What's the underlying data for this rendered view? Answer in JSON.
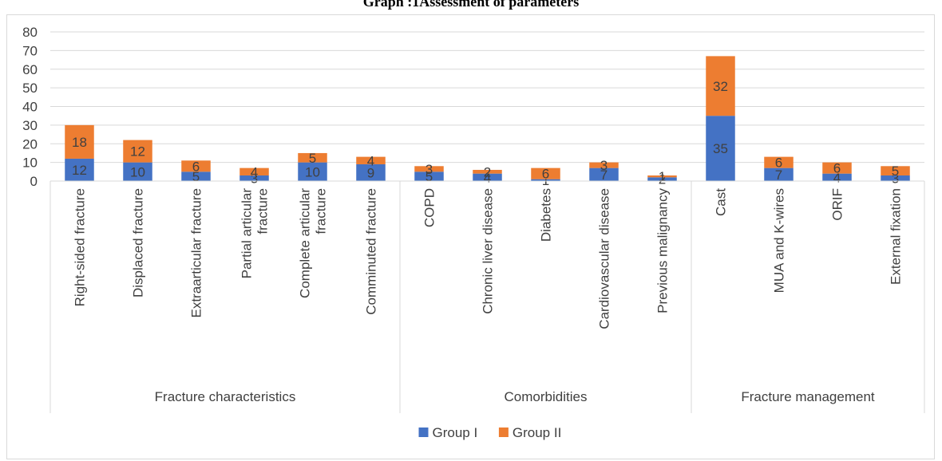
{
  "chart_data": {
    "type": "bar",
    "stacked": true,
    "title": "Graph :1Assessment of parameters",
    "ylim": [
      0,
      80
    ],
    "yticks": [
      0,
      10,
      20,
      30,
      40,
      50,
      60,
      70,
      80
    ],
    "grid": true,
    "legend_position": "bottom",
    "groups": [
      {
        "name": "Fracture characteristics",
        "categories": [
          "Right-sided fracture",
          "Displaced fracture",
          "Extraarticular fracture",
          "Partial articular fracture",
          "Complete articular fracture",
          "Comminuted fracture"
        ]
      },
      {
        "name": "Comorbidities",
        "categories": [
          "COPD",
          "Chronic liver disease",
          "Diabetes",
          "Cardiovascular disease",
          "Previous malignancy"
        ]
      },
      {
        "name": "Fracture management",
        "categories": [
          "Cast",
          "MUA and K-wires",
          "ORIF",
          "External fixation"
        ]
      }
    ],
    "categories": [
      "Right-sided fracture",
      "Displaced fracture",
      "Extraarticular fracture",
      "Partial articular fracture",
      "Complete articular fracture",
      "Comminuted fracture",
      "COPD",
      "Chronic liver disease",
      "Diabetes",
      "Cardiovascular disease",
      "Previous malignancy",
      "Cast",
      "MUA and K-wires",
      "ORIF",
      "External fixation"
    ],
    "series": [
      {
        "name": "Group I",
        "color": "#4472c4",
        "values": [
          12,
          10,
          5,
          3,
          10,
          9,
          5,
          4,
          1,
          7,
          2,
          35,
          7,
          4,
          3
        ]
      },
      {
        "name": "Group II",
        "color": "#ed7d31",
        "values": [
          18,
          12,
          6,
          4,
          5,
          4,
          3,
          2,
          6,
          3,
          1,
          32,
          6,
          6,
          5
        ]
      }
    ]
  }
}
